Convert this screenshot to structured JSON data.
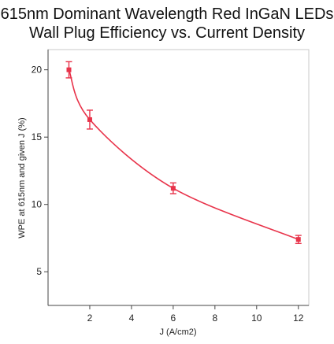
{
  "chart_data": {
    "type": "line",
    "title": [
      "615nm Dominant Wavelength Red InGaN LEDs",
      "Wall Plug Efficiency vs. Current Density"
    ],
    "xlabel": "J (A/cm2)",
    "ylabel": "WPE at 615nm and given J (%)",
    "xlim": [
      0,
      12.5
    ],
    "ylim": [
      2.5,
      21.5
    ],
    "x_ticks": [
      2,
      4,
      6,
      8,
      10,
      12
    ],
    "y_ticks": [
      5,
      10,
      15,
      20
    ],
    "grid": false,
    "series": [
      {
        "x": [
          1,
          2,
          6,
          12
        ],
        "y": [
          20.0,
          16.3,
          11.2,
          7.4
        ],
        "error": [
          0.6,
          0.7,
          0.4,
          0.3
        ],
        "color": "#e8334a"
      }
    ]
  }
}
